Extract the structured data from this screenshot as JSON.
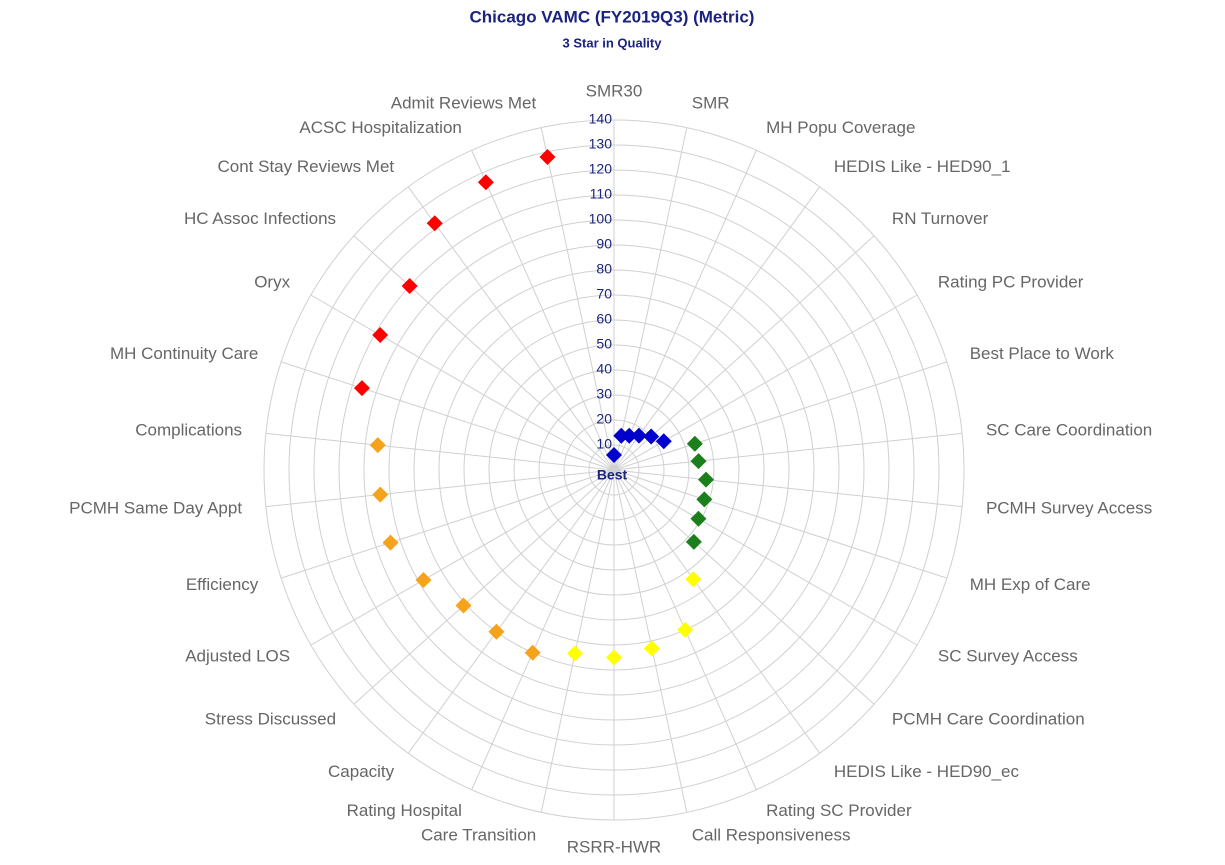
{
  "chart_data": {
    "type": "radar",
    "title": "Chicago VAMC (FY2019Q3) (Metric)",
    "subtitle": "3 Star in Quality",
    "categories": [
      "SMR30",
      "SMR",
      "MH Popu Coverage",
      "HEDIS Like - HED90_1",
      "RN Turnover",
      "Rating PC Provider",
      "Best Place to Work",
      "SC Care Coordination",
      "PCMH Survey Access",
      "MH Exp of Care",
      "SC Survey Access",
      "PCMH Care Coordination",
      "HEDIS Like - HED90_ec",
      "Rating SC Provider",
      "Call Responsiveness",
      "RSRR-HWR",
      "Care Transition",
      "Rating Hospital",
      "Capacity",
      "Stress Discussed",
      "Adjusted LOS",
      "Efficiency",
      "PCMH Same Day Appt",
      "Complications",
      "MH Continuity Care",
      "Oryx",
      "HC Assoc Infections",
      "Cont Stay Reviews Met",
      "ACSC Hospitalization",
      "Admit Reviews Met"
    ],
    "values": [
      6,
      14,
      15,
      17,
      20,
      23,
      34,
      34,
      37,
      38,
      39,
      43,
      54,
      70,
      73,
      75,
      75,
      80,
      80,
      81,
      88,
      94,
      94,
      95,
      106,
      108,
      110,
      122,
      126,
      128
    ],
    "colors": [
      "#0000cc",
      "#0000cc",
      "#0000cc",
      "#0000cc",
      "#0000cc",
      "#0000cc",
      "#1b7f1b",
      "#1b7f1b",
      "#1b7f1b",
      "#1b7f1b",
      "#1b7f1b",
      "#1b7f1b",
      "#ffff00",
      "#ffff00",
      "#ffff00",
      "#ffff00",
      "#ffff00",
      "#f5a31a",
      "#f5a31a",
      "#f5a31a",
      "#f5a31a",
      "#f5a31a",
      "#f5a31a",
      "#f5a31a",
      "#ff0000",
      "#ff0000",
      "#ff0000",
      "#ff0000",
      "#ff0000",
      "#ff0000"
    ],
    "rlim": [
      0,
      140
    ],
    "rticks": [
      {
        "value": 0,
        "label": "Best"
      },
      10,
      20,
      30,
      40,
      50,
      60,
      70,
      80,
      90,
      100,
      110,
      120,
      130,
      140
    ],
    "grid": true
  }
}
